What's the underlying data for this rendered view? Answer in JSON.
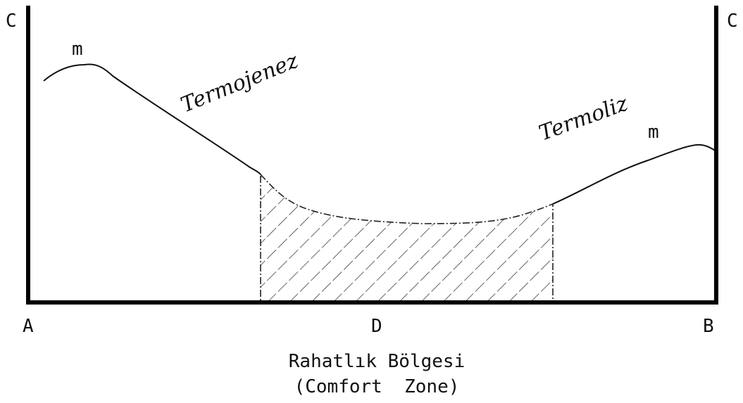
{
  "corners": {
    "top_left": "C",
    "top_right": "C",
    "bottom_left": "A",
    "bottom_center": "D",
    "bottom_right": "B"
  },
  "peaks": [
    "m",
    "m"
  ],
  "regions": [
    "Termojenez",
    "Termoliz"
  ],
  "caption": [
    "Rahatlık Bölgesi",
    "(Comfort  Zone)"
  ]
}
